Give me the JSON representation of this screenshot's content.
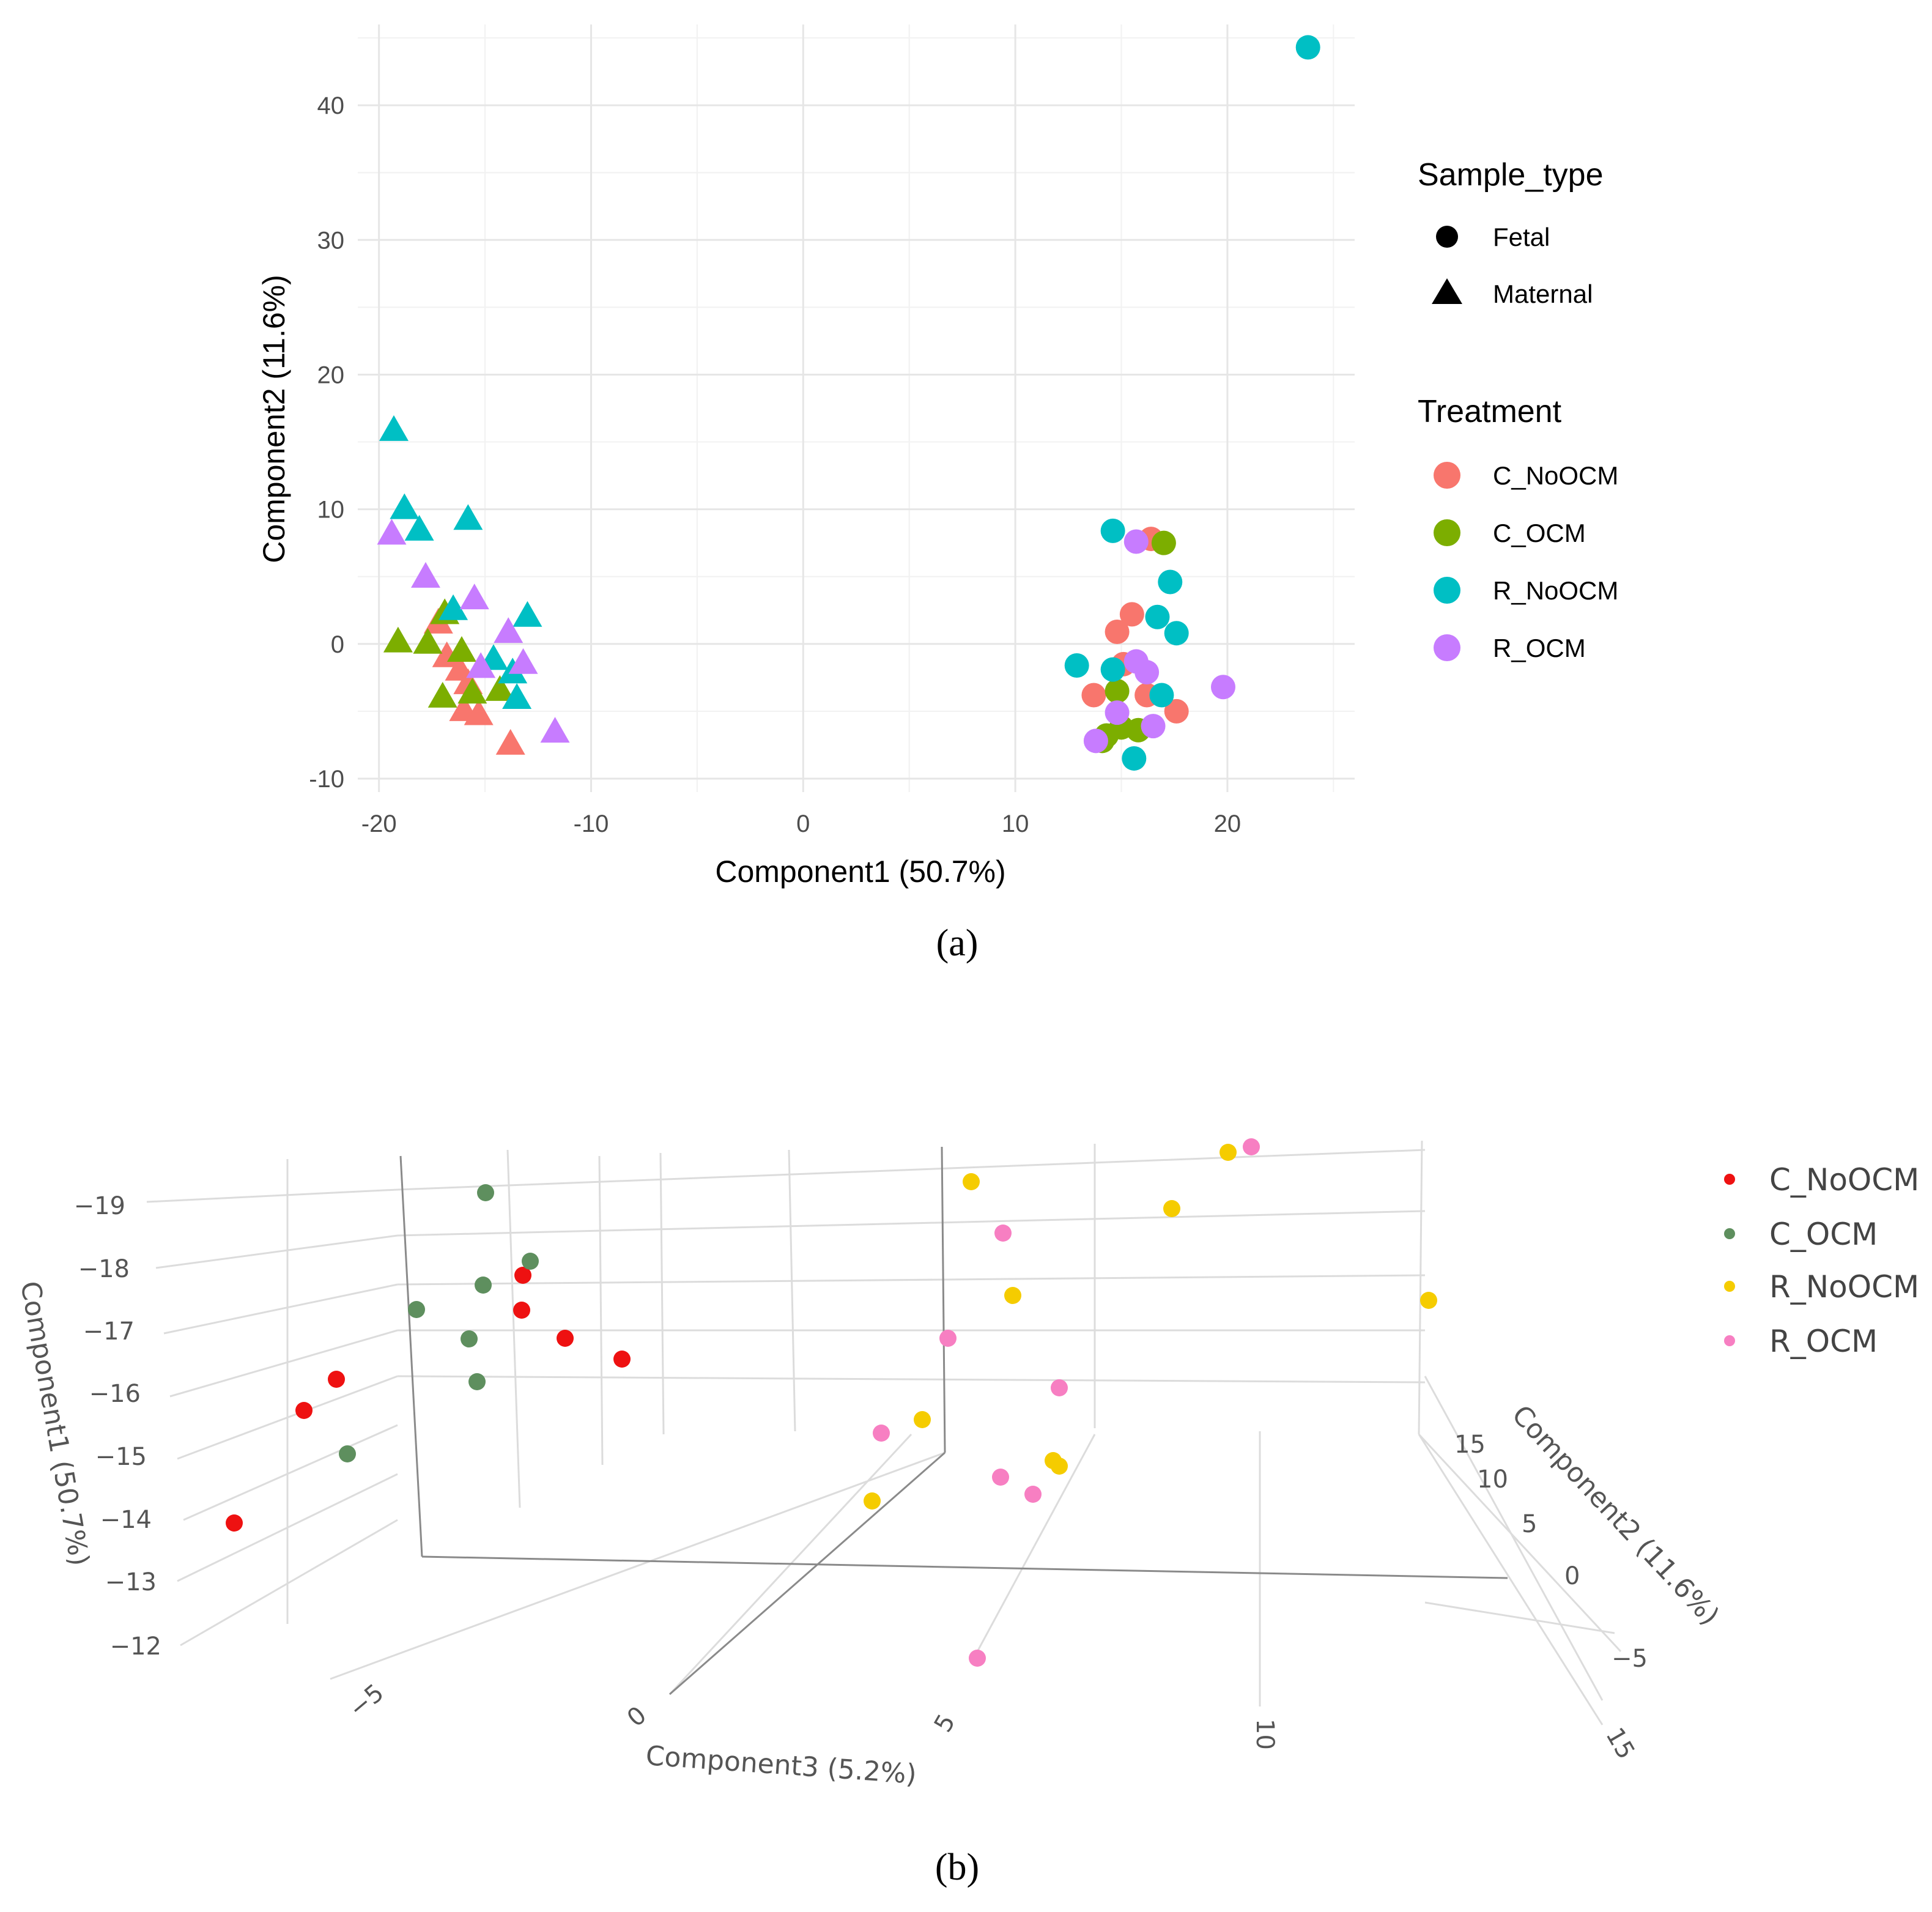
{
  "chart_data": [
    {
      "type": "scatter",
      "panel_label": "(a)",
      "xlabel": "Component1 (50.7%)",
      "ylabel": "Component2 (11.6%)",
      "xlim": [
        -21,
        26
      ],
      "ylim": [
        -11,
        46
      ],
      "xticks": [
        -20,
        -10,
        0,
        10,
        20
      ],
      "xtick_labels": [
        "-20",
        "-10",
        "0",
        "10",
        "20"
      ],
      "yticks": [
        -10,
        0,
        10,
        20,
        30,
        40
      ],
      "ytick_labels": [
        "-10",
        "0",
        "10",
        "20",
        "30",
        "40"
      ],
      "legend_shape": {
        "title": "Sample_type",
        "items": [
          {
            "label": "Fetal",
            "shape": "circle"
          },
          {
            "label": "Maternal",
            "shape": "triangle"
          }
        ]
      },
      "legend_color": {
        "title": "Treatment",
        "items": [
          {
            "label": "C_NoOCM",
            "color": "#F8766D"
          },
          {
            "label": "C_OCM",
            "color": "#7CAE00"
          },
          {
            "label": "R_NoOCM",
            "color": "#00BFC4"
          },
          {
            "label": "R_OCM",
            "color": "#C77CFF"
          }
        ]
      },
      "points": [
        {
          "x": -17.2,
          "y": 1.5,
          "shape": "triangle",
          "group": "C_NoOCM"
        },
        {
          "x": -16.8,
          "y": -1.0,
          "shape": "triangle",
          "group": "C_NoOCM"
        },
        {
          "x": -16.2,
          "y": -2.0,
          "shape": "triangle",
          "group": "C_NoOCM"
        },
        {
          "x": -15.8,
          "y": -3.0,
          "shape": "triangle",
          "group": "C_NoOCM"
        },
        {
          "x": -16.0,
          "y": -5.0,
          "shape": "triangle",
          "group": "C_NoOCM"
        },
        {
          "x": -15.3,
          "y": -5.3,
          "shape": "triangle",
          "group": "C_NoOCM"
        },
        {
          "x": -13.8,
          "y": -7.5,
          "shape": "triangle",
          "group": "C_NoOCM"
        },
        {
          "x": -19.1,
          "y": 0.1,
          "shape": "triangle",
          "group": "C_OCM"
        },
        {
          "x": -17.7,
          "y": 0.0,
          "shape": "triangle",
          "group": "C_OCM"
        },
        {
          "x": -16.9,
          "y": 2.2,
          "shape": "triangle",
          "group": "C_OCM"
        },
        {
          "x": -16.1,
          "y": -0.6,
          "shape": "triangle",
          "group": "C_OCM"
        },
        {
          "x": -17.0,
          "y": -4.0,
          "shape": "triangle",
          "group": "C_OCM"
        },
        {
          "x": -15.6,
          "y": -3.7,
          "shape": "triangle",
          "group": "C_OCM"
        },
        {
          "x": -14.3,
          "y": -3.5,
          "shape": "triangle",
          "group": "C_OCM"
        },
        {
          "x": -19.3,
          "y": 15.8,
          "shape": "triangle",
          "group": "R_NoOCM"
        },
        {
          "x": -18.8,
          "y": 10.0,
          "shape": "triangle",
          "group": "R_NoOCM"
        },
        {
          "x": -18.1,
          "y": 8.4,
          "shape": "triangle",
          "group": "R_NoOCM"
        },
        {
          "x": -15.8,
          "y": 9.2,
          "shape": "triangle",
          "group": "R_NoOCM"
        },
        {
          "x": -16.5,
          "y": 2.5,
          "shape": "triangle",
          "group": "R_NoOCM"
        },
        {
          "x": -13.0,
          "y": 2.0,
          "shape": "triangle",
          "group": "R_NoOCM"
        },
        {
          "x": -14.6,
          "y": -1.2,
          "shape": "triangle",
          "group": "R_NoOCM"
        },
        {
          "x": -13.7,
          "y": -2.2,
          "shape": "triangle",
          "group": "R_NoOCM"
        },
        {
          "x": -13.5,
          "y": -4.1,
          "shape": "triangle",
          "group": "R_NoOCM"
        },
        {
          "x": -19.4,
          "y": 8.1,
          "shape": "triangle",
          "group": "R_OCM"
        },
        {
          "x": -17.8,
          "y": 4.9,
          "shape": "triangle",
          "group": "R_OCM"
        },
        {
          "x": -15.5,
          "y": 3.3,
          "shape": "triangle",
          "group": "R_OCM"
        },
        {
          "x": -13.9,
          "y": 0.8,
          "shape": "triangle",
          "group": "R_OCM"
        },
        {
          "x": -15.2,
          "y": -1.8,
          "shape": "triangle",
          "group": "R_OCM"
        },
        {
          "x": -13.2,
          "y": -1.5,
          "shape": "triangle",
          "group": "R_OCM"
        },
        {
          "x": -11.7,
          "y": -6.6,
          "shape": "triangle",
          "group": "R_OCM"
        },
        {
          "x": 16.4,
          "y": 7.8,
          "shape": "circle",
          "group": "C_NoOCM"
        },
        {
          "x": 15.5,
          "y": 2.2,
          "shape": "circle",
          "group": "C_NoOCM"
        },
        {
          "x": 14.8,
          "y": 0.9,
          "shape": "circle",
          "group": "C_NoOCM"
        },
        {
          "x": 15.1,
          "y": -1.5,
          "shape": "circle",
          "group": "C_NoOCM"
        },
        {
          "x": 13.7,
          "y": -3.8,
          "shape": "circle",
          "group": "C_NoOCM"
        },
        {
          "x": 16.2,
          "y": -3.8,
          "shape": "circle",
          "group": "C_NoOCM"
        },
        {
          "x": 17.6,
          "y": -5.0,
          "shape": "circle",
          "group": "C_NoOCM"
        },
        {
          "x": 17.0,
          "y": 7.5,
          "shape": "circle",
          "group": "C_OCM"
        },
        {
          "x": 14.8,
          "y": -3.5,
          "shape": "circle",
          "group": "C_OCM"
        },
        {
          "x": 14.3,
          "y": -6.8,
          "shape": "circle",
          "group": "C_OCM"
        },
        {
          "x": 15.0,
          "y": -6.2,
          "shape": "circle",
          "group": "C_OCM"
        },
        {
          "x": 15.8,
          "y": -6.4,
          "shape": "circle",
          "group": "C_OCM"
        },
        {
          "x": 14.1,
          "y": -7.2,
          "shape": "circle",
          "group": "C_OCM"
        },
        {
          "x": 23.8,
          "y": 44.3,
          "shape": "circle",
          "group": "R_NoOCM"
        },
        {
          "x": 14.6,
          "y": 8.4,
          "shape": "circle",
          "group": "R_NoOCM"
        },
        {
          "x": 17.3,
          "y": 4.6,
          "shape": "circle",
          "group": "R_NoOCM"
        },
        {
          "x": 16.7,
          "y": 2.0,
          "shape": "circle",
          "group": "R_NoOCM"
        },
        {
          "x": 17.6,
          "y": 0.8,
          "shape": "circle",
          "group": "R_NoOCM"
        },
        {
          "x": 12.9,
          "y": -1.6,
          "shape": "circle",
          "group": "R_NoOCM"
        },
        {
          "x": 14.6,
          "y": -1.9,
          "shape": "circle",
          "group": "R_NoOCM"
        },
        {
          "x": 16.9,
          "y": -3.8,
          "shape": "circle",
          "group": "R_NoOCM"
        },
        {
          "x": 15.6,
          "y": -8.5,
          "shape": "circle",
          "group": "R_NoOCM"
        },
        {
          "x": 15.7,
          "y": 7.6,
          "shape": "circle",
          "group": "R_OCM"
        },
        {
          "x": 15.7,
          "y": -1.3,
          "shape": "circle",
          "group": "R_OCM"
        },
        {
          "x": 16.2,
          "y": -2.1,
          "shape": "circle",
          "group": "R_OCM"
        },
        {
          "x": 19.8,
          "y": -3.2,
          "shape": "circle",
          "group": "R_OCM"
        },
        {
          "x": 14.8,
          "y": -5.1,
          "shape": "circle",
          "group": "R_OCM"
        },
        {
          "x": 16.5,
          "y": -6.1,
          "shape": "circle",
          "group": "R_OCM"
        },
        {
          "x": 13.8,
          "y": -7.2,
          "shape": "circle",
          "group": "R_OCM"
        }
      ]
    },
    {
      "type": "scatter",
      "subtype": "3d",
      "panel_label": "(b)",
      "axes": {
        "component1": {
          "title": "Component1 (50.7%)",
          "ticks": [
            "−19",
            "−18",
            "−17",
            "−16",
            "−15",
            "−14",
            "−13",
            "−12"
          ]
        },
        "component2": {
          "title": "Component2 (11.6%)",
          "ticks": [
            "15",
            "10",
            "5",
            "0",
            "−5"
          ]
        },
        "component3": {
          "title": "Component3 (5.2%)",
          "ticks": [
            "−5",
            "0",
            "5",
            "10",
            "15"
          ]
        }
      },
      "legend": [
        {
          "label": "C_NoOCM",
          "color": "#EE1111"
        },
        {
          "label": "C_OCM",
          "color": "#5E8F5E"
        },
        {
          "label": "R_NoOCM",
          "color": "#F5CC00"
        },
        {
          "label": "R_OCM",
          "color": "#F77FC2"
        }
      ]
    }
  ]
}
